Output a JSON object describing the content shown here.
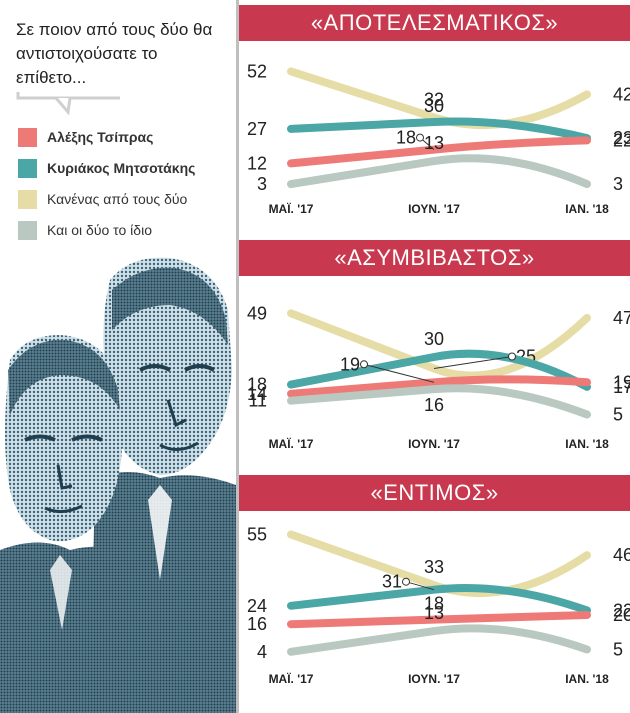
{
  "question": "Σε ποιον από τους δύο θα αντιστοιχούσατε το επίθετο...",
  "legend": [
    {
      "label": "Αλέξης Τσίπρας",
      "color": "#ee7a78",
      "bold": true
    },
    {
      "label": "Κυριάκος Μητσοτάκης",
      "color": "#4ba6a6",
      "bold": true
    },
    {
      "label": "Κανένας από τους δύο",
      "color": "#e6dca6",
      "bold": false
    },
    {
      "label": "Και οι δύο το ίδιο",
      "color": "#b9c8c0",
      "bold": false
    }
  ],
  "colors": {
    "header": "#c8384e",
    "tsipras": "#ee7a78",
    "mitsotakis": "#4ba6a6",
    "neither": "#e6dca6",
    "both": "#b9c8c0"
  },
  "chart_data": [
    {
      "type": "line",
      "title": "«ΑΠΟΤΕΛΕΣΜΑΤΙΚΟΣ»",
      "categories": [
        "ΜΑΪ. '17",
        "ΙΟΥΝ. '17",
        "ΙΑΝ. '18"
      ],
      "ylim": [
        0,
        60
      ],
      "series": [
        {
          "name": "Κανένας από τους δύο",
          "color": "#e6dca6",
          "values": [
            52,
            32,
            42
          ]
        },
        {
          "name": "Κυριάκος Μητσοτάκης",
          "color": "#4ba6a6",
          "values": [
            27,
            30,
            23
          ]
        },
        {
          "name": "Αλέξης Τσίπρας",
          "color": "#ee7a78",
          "values": [
            12,
            18,
            22
          ]
        },
        {
          "name": "Και οι δύο το ίδιο",
          "color": "#b9c8c0",
          "values": [
            3,
            13,
            3
          ]
        }
      ]
    },
    {
      "type": "line",
      "title": "«ΑΣΥΜΒΙΒΑΣΤΟΣ»",
      "categories": [
        "ΜΑΪ. '17",
        "ΙΟΥΝ. '17",
        "ΙΑΝ. '18"
      ],
      "ylim": [
        0,
        60
      ],
      "series": [
        {
          "name": "Κανένας από τους δύο",
          "color": "#e6dca6",
          "values": [
            49,
            25,
            47
          ]
        },
        {
          "name": "Κυριάκος Μητσοτάκης",
          "color": "#4ba6a6",
          "values": [
            18,
            30,
            17
          ]
        },
        {
          "name": "Αλέξης Τσίπρας",
          "color": "#ee7a78",
          "values": [
            14,
            19,
            19
          ]
        },
        {
          "name": "Και οι δύο το ίδιο",
          "color": "#b9c8c0",
          "values": [
            11,
            16,
            5
          ]
        }
      ]
    },
    {
      "type": "line",
      "title": "«ΕΝΤΙΜΟΣ»",
      "categories": [
        "ΜΑΪ. '17",
        "ΙΟΥΝ. '17",
        "ΙΑΝ. '18"
      ],
      "ylim": [
        0,
        60
      ],
      "series": [
        {
          "name": "Κανένας από τους δύο",
          "color": "#e6dca6",
          "values": [
            55,
            33,
            46
          ]
        },
        {
          "name": "Κυριάκος Μητσοτάκης",
          "color": "#4ba6a6",
          "values": [
            24,
            31,
            22
          ]
        },
        {
          "name": "Αλέξης Τσίπρας",
          "color": "#ee7a78",
          "values": [
            16,
            18,
            20
          ]
        },
        {
          "name": "Και οι δύο το ίδιο",
          "color": "#b9c8c0",
          "values": [
            4,
            13,
            5
          ]
        }
      ]
    }
  ]
}
